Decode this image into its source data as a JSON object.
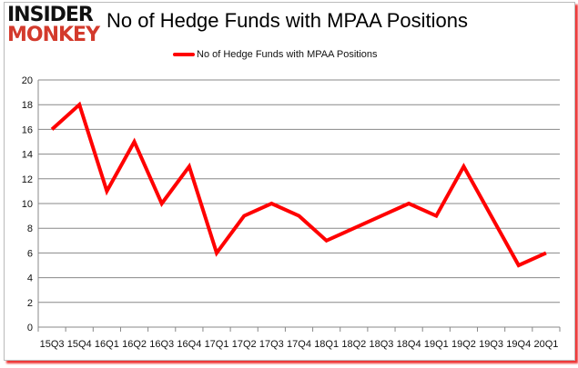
{
  "logo": {
    "line1": "INSIDER",
    "line2": "MONKEY"
  },
  "chart_data": {
    "type": "line",
    "title": "No of Hedge Funds with MPAA Positions",
    "categories": [
      "15Q3",
      "15Q4",
      "16Q1",
      "16Q2",
      "16Q3",
      "16Q4",
      "17Q1",
      "17Q2",
      "17Q3",
      "17Q4",
      "18Q1",
      "18Q2",
      "18Q3",
      "18Q4",
      "19Q1",
      "19Q2",
      "19Q3",
      "19Q4",
      "20Q1"
    ],
    "series": [
      {
        "name": "No of Hedge Funds with MPAA Positions",
        "values": [
          16,
          18,
          11,
          15,
          10,
          13,
          6,
          9,
          10,
          9,
          7,
          8,
          9,
          10,
          9,
          13,
          9,
          5,
          6
        ],
        "color": "#ff0000"
      }
    ],
    "ylim": [
      0,
      20
    ],
    "yticks": [
      0,
      2,
      4,
      6,
      8,
      10,
      12,
      14,
      16,
      18,
      20
    ],
    "grid": true,
    "legend": "top"
  }
}
